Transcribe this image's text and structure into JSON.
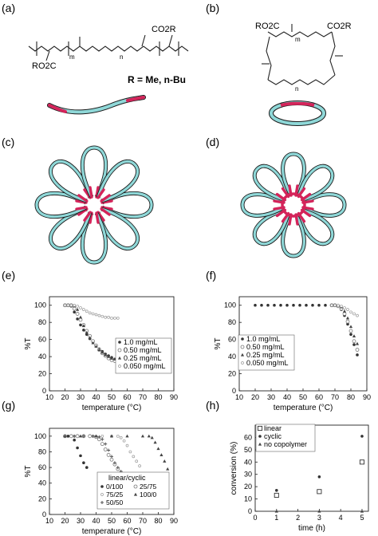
{
  "panel_labels": [
    "(a)",
    "(b)",
    "(c)",
    "(d)",
    "(e)",
    "(f)",
    "(g)",
    "(h)"
  ],
  "structure_a": {
    "r_label": "R = Me, n-Bu",
    "group_left": "RO2C",
    "group_right": "CO2R",
    "sub_m": "m",
    "sub_n": "n"
  },
  "structure_b": {
    "group_left": "RO2C",
    "group_right": "CO2R",
    "sub_m": "m",
    "sub_n": "n"
  },
  "colors": {
    "polymer": "#8fd8d8",
    "hydrophobe": "#d4245a",
    "axis": "#222222",
    "markers": "#333333"
  },
  "chart_data": [
    {
      "id": "e",
      "type": "scatter",
      "xlabel": "temperature (°C)",
      "ylabel": "%T",
      "xlim": [
        10,
        90
      ],
      "ylim": [
        0,
        110
      ],
      "xticks": [
        10,
        20,
        30,
        40,
        50,
        60,
        70,
        80,
        90
      ],
      "yticks": [
        0,
        20,
        40,
        60,
        80,
        100
      ],
      "legend_position": "lower-right",
      "series": [
        {
          "name": "1.0 mg/mL",
          "marker": "dot",
          "x": [
            20,
            22,
            24,
            26,
            28,
            30,
            32,
            34,
            36,
            38,
            40,
            42,
            44,
            46,
            48,
            50,
            52,
            54
          ],
          "y": [
            100,
            100,
            99,
            92,
            84,
            77,
            71,
            66,
            61,
            57,
            53,
            49,
            46,
            43,
            41,
            39,
            37,
            36
          ]
        },
        {
          "name": "0.50 mg/mL",
          "marker": "open",
          "x": [
            20,
            22,
            24,
            26,
            28,
            30,
            32,
            34,
            36,
            38,
            40,
            42,
            44,
            46,
            48,
            50,
            52,
            54
          ],
          "y": [
            100,
            100,
            100,
            96,
            90,
            83,
            77,
            70,
            64,
            58,
            53,
            48,
            44,
            41,
            38,
            36,
            35,
            34
          ]
        },
        {
          "name": "0.25 mg/mL",
          "marker": "triangle",
          "x": [
            20,
            22,
            24,
            26,
            28,
            30,
            32,
            34,
            36,
            38,
            40,
            42,
            44,
            46,
            48,
            50,
            52,
            54
          ],
          "y": [
            100,
            100,
            100,
            99,
            95,
            86,
            76,
            68,
            62,
            56,
            52,
            48,
            45,
            42,
            40,
            38,
            37,
            36
          ]
        },
        {
          "name": "0.050 mg/mL",
          "marker": "open-small",
          "x": [
            20,
            22,
            24,
            26,
            28,
            30,
            32,
            34,
            36,
            38,
            40,
            42,
            44,
            46,
            48,
            50,
            52,
            54
          ],
          "y": [
            100,
            100,
            100,
            100,
            99,
            97,
            95,
            93,
            91,
            90,
            89,
            88,
            87,
            86,
            86,
            85,
            85,
            85
          ]
        }
      ]
    },
    {
      "id": "f",
      "type": "scatter",
      "xlabel": "temperature (°C)",
      "ylabel": "%T",
      "xlim": [
        10,
        90
      ],
      "ylim": [
        0,
        110
      ],
      "xticks": [
        10,
        20,
        30,
        40,
        50,
        60,
        70,
        80,
        90
      ],
      "yticks": [
        0,
        20,
        40,
        60,
        80,
        100
      ],
      "legend_position": "lower-left",
      "series": [
        {
          "name": "1.0 mg/mL",
          "marker": "dot",
          "x": [
            20,
            24,
            28,
            32,
            36,
            40,
            44,
            48,
            52,
            56,
            60,
            64,
            68,
            72,
            74,
            76,
            78,
            80,
            82,
            84
          ],
          "y": [
            100,
            100,
            100,
            100,
            100,
            100,
            100,
            100,
            100,
            100,
            100,
            100,
            100,
            99,
            95,
            88,
            78,
            66,
            54,
            42
          ]
        },
        {
          "name": "0.50 mg/mL",
          "marker": "open",
          "x": [
            68,
            70,
            72,
            74,
            76,
            78,
            80,
            82,
            84
          ],
          "y": [
            100,
            100,
            99,
            96,
            90,
            81,
            70,
            58,
            48
          ]
        },
        {
          "name": "0.25 mg/mL",
          "marker": "triangle",
          "x": [
            68,
            70,
            72,
            74,
            76,
            78,
            80,
            82,
            84
          ],
          "y": [
            100,
            100,
            100,
            98,
            93,
            85,
            75,
            64,
            55
          ]
        },
        {
          "name": "0.050 mg/mL",
          "marker": "open-small",
          "x": [
            68,
            70,
            72,
            74,
            76,
            78,
            80,
            82,
            84
          ],
          "y": [
            100,
            100,
            100,
            99,
            97,
            95,
            92,
            90,
            88
          ]
        }
      ]
    },
    {
      "id": "g",
      "type": "scatter",
      "xlabel": "temperature (°C)",
      "ylabel": "%T",
      "xlim": [
        10,
        90
      ],
      "ylim": [
        0,
        110
      ],
      "xticks": [
        10,
        20,
        30,
        40,
        50,
        60,
        70,
        80,
        90
      ],
      "yticks": [
        0,
        20,
        40,
        60,
        80,
        100
      ],
      "legend_title": "linear/cyclic",
      "legend_position": "lower-right",
      "series": [
        {
          "name": "0/100",
          "marker": "dot",
          "x": [
            20,
            22,
            24,
            26,
            28,
            30,
            32,
            34
          ],
          "y": [
            100,
            100,
            100,
            95,
            85,
            75,
            66,
            60
          ]
        },
        {
          "name": "25/75",
          "marker": "open",
          "x": [
            20,
            24,
            28,
            32,
            36,
            40,
            42,
            44,
            46,
            48,
            50,
            52,
            54
          ],
          "y": [
            100,
            100,
            100,
            100,
            100,
            99,
            96,
            90,
            83,
            76,
            70,
            64,
            58
          ]
        },
        {
          "name": "75/25",
          "marker": "open-small",
          "x": [
            20,
            26,
            32,
            38,
            44,
            50,
            54,
            56,
            58,
            60,
            62,
            64,
            66,
            68
          ],
          "y": [
            100,
            100,
            100,
            100,
            100,
            100,
            100,
            98,
            94,
            88,
            80,
            74,
            68,
            62
          ]
        },
        {
          "name": "100/0",
          "marker": "triangle",
          "x": [
            20,
            30,
            40,
            50,
            60,
            70,
            74,
            76,
            78,
            80,
            82,
            84,
            86
          ],
          "y": [
            100,
            100,
            100,
            100,
            100,
            100,
            100,
            98,
            92,
            84,
            76,
            68,
            58
          ]
        },
        {
          "name": "50/50",
          "marker": "star",
          "x": [
            20,
            26,
            32,
            38,
            42,
            44,
            46,
            48,
            50,
            52,
            54,
            56
          ],
          "y": [
            100,
            100,
            100,
            100,
            99,
            96,
            90,
            82,
            74,
            66,
            60,
            55
          ]
        }
      ]
    },
    {
      "id": "h",
      "type": "scatter",
      "xlabel": "time (h)",
      "ylabel": "conversion (%)",
      "xlim": [
        0,
        5.3
      ],
      "ylim": [
        0,
        70
      ],
      "xticks": [
        0,
        1,
        2,
        3,
        4,
        5
      ],
      "yticks": [
        0,
        10,
        20,
        30,
        40,
        50,
        60
      ],
      "legend_position": "top-left",
      "series": [
        {
          "name": "linear",
          "marker": "open-square",
          "x": [
            1,
            3,
            5
          ],
          "y": [
            13,
            16,
            40
          ]
        },
        {
          "name": "cyclic",
          "marker": "dot",
          "x": [
            1,
            3,
            5
          ],
          "y": [
            17,
            28,
            61
          ]
        },
        {
          "name": "no copolymer",
          "marker": "triangle",
          "x": [
            1,
            3,
            5
          ],
          "y": [
            0,
            0,
            0
          ]
        }
      ]
    }
  ]
}
